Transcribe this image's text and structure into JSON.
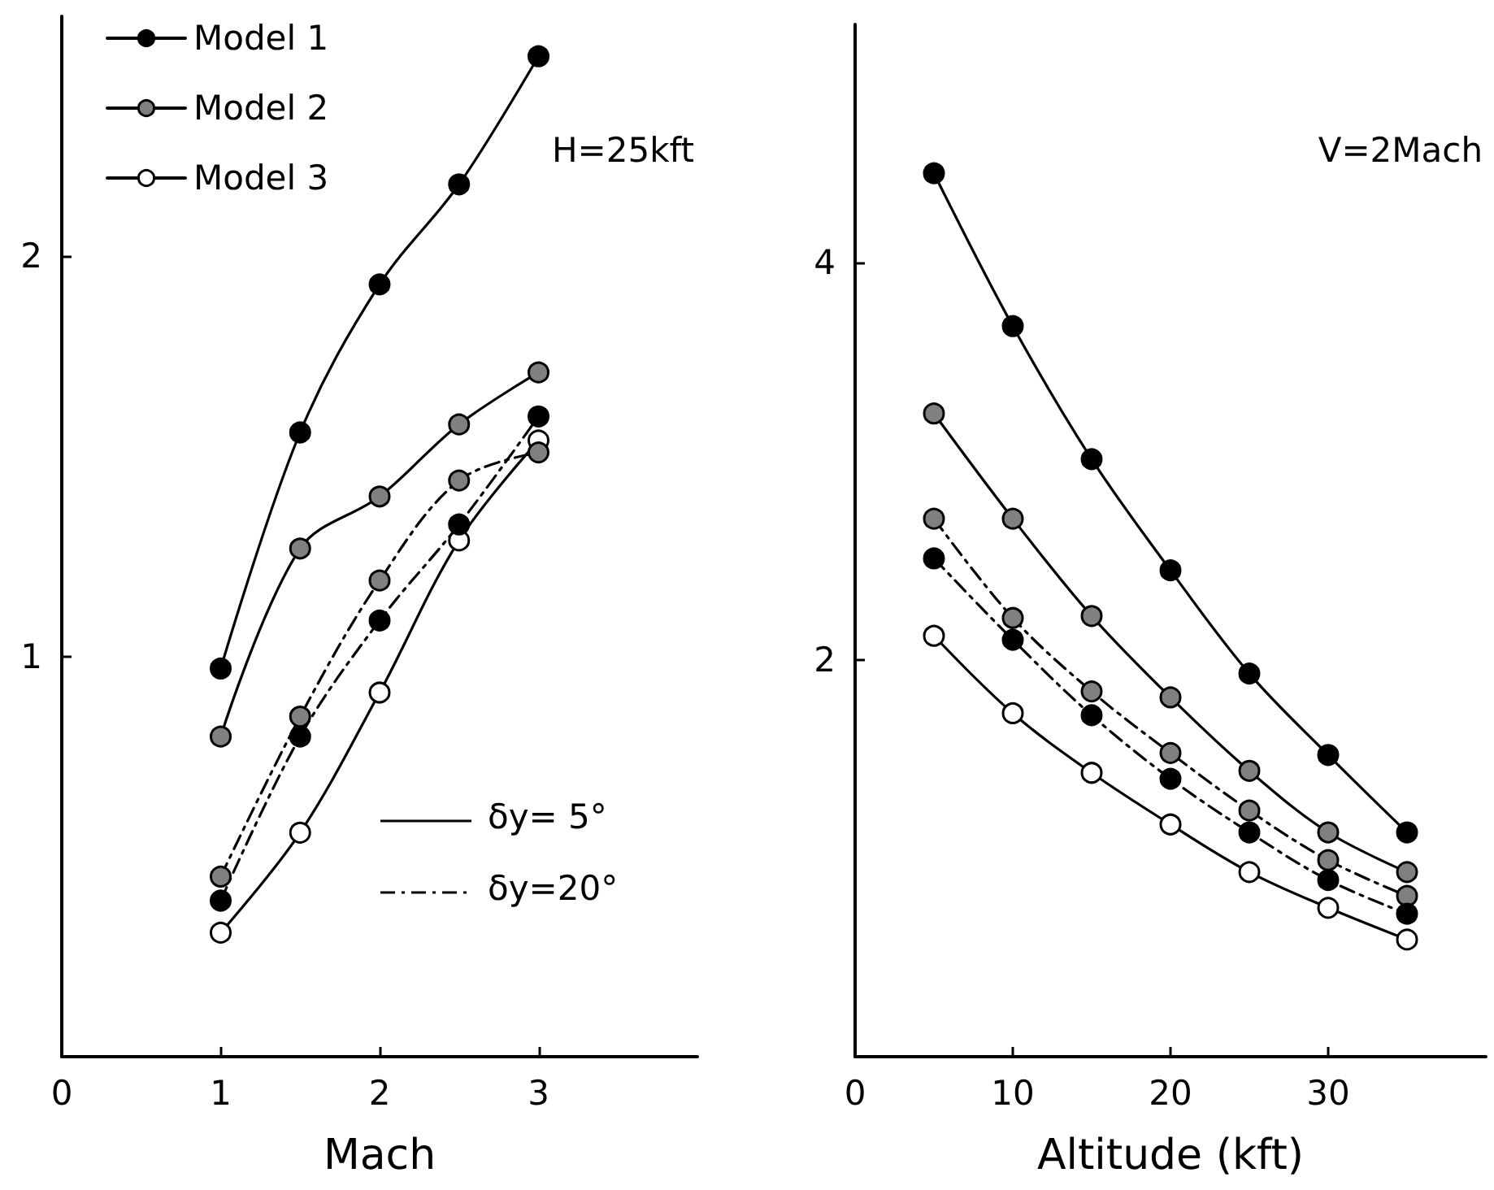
{
  "chart_data": [
    {
      "type": "line",
      "xlabel": "Mach",
      "x": [
        1,
        1.5,
        2,
        2.5,
        3
      ],
      "xlim": [
        0,
        4
      ],
      "xticks": [
        0,
        1,
        2,
        3
      ],
      "ylim": [
        0,
        2.6
      ],
      "yticks": [
        1,
        2
      ],
      "legend": "top left",
      "marker": "circle",
      "annotations": [
        "H=25kft",
        "δy= 5°",
        "δy=20°"
      ],
      "series": [
        {
          "name": "Model 1",
          "color": "#000000",
          "colors": [
            "#000000",
            "#000000",
            "#000000",
            "#000000",
            "#000000"
          ],
          "line_style": "solid",
          "values": [
            0.97,
            1.56,
            1.93,
            2.18,
            2.5
          ]
        },
        {
          "name": "Model 2",
          "color": "#000000",
          "colors": [
            "#808080",
            "#808080",
            "#808080",
            "#808080",
            "#808080"
          ],
          "line_style": "solid",
          "values": [
            0.8,
            1.27,
            1.4,
            1.58,
            1.71
          ]
        },
        {
          "name": "Model 3",
          "color": "#000000",
          "colors": [
            "#ffffff",
            "#ffffff",
            "#ffffff",
            "#ffffff",
            "#ffffff"
          ],
          "line_style": "solid",
          "values": [
            0.31,
            0.56,
            0.91,
            1.29,
            1.54
          ]
        },
        {
          "color": "#000000",
          "colors": [
            "#808080",
            "#808080",
            "#808080",
            "#808080",
            "#808080"
          ],
          "line_style": "dashed",
          "values": [
            0.45,
            0.85,
            1.19,
            1.44,
            1.51
          ]
        },
        {
          "color": "#000000",
          "colors": [
            "#000000",
            "#000000",
            "#000000",
            "#000000",
            "#000000"
          ],
          "line_style": "dashed",
          "values": [
            0.39,
            0.8,
            1.09,
            1.33,
            1.6
          ]
        }
      ]
    },
    {
      "type": "line",
      "xlabel": "Altitude (kft)",
      "x": [
        5,
        10,
        15,
        20,
        25,
        30,
        35
      ],
      "xlim": [
        0,
        40
      ],
      "xticks": [
        0,
        10,
        20,
        30
      ],
      "ylim": [
        0,
        5.2
      ],
      "yticks": [
        2,
        4
      ],
      "marker": "circle",
      "annotations": [
        "V=2Mach"
      ],
      "series": [
        {
          "color": "#000000",
          "colors": [
            "#000000",
            "#000000",
            "#000000",
            "#000000",
            "#000000",
            "#000000",
            "#000000"
          ],
          "line_style": "solid",
          "values": [
            4.45,
            3.68,
            3.01,
            2.45,
            1.93,
            1.52,
            1.13
          ]
        },
        {
          "color": "#000000",
          "colors": [
            "#808080",
            "#808080",
            "#808080",
            "#808080",
            "#808080",
            "#808080",
            "#808080"
          ],
          "line_style": "solid",
          "values": [
            3.24,
            2.71,
            2.22,
            1.81,
            1.44,
            1.13,
            0.93
          ]
        },
        {
          "color": "#000000",
          "colors": [
            "#808080",
            "#808080",
            "#808080",
            "#808080",
            "#808080",
            "#808080",
            "#808080"
          ],
          "line_style": "dashed",
          "values": [
            2.71,
            2.21,
            1.84,
            1.53,
            1.24,
            0.99,
            0.81
          ]
        },
        {
          "color": "#000000",
          "colors": [
            "#000000",
            "#000000",
            "#000000",
            "#000000",
            "#000000",
            "#000000",
            "#000000"
          ],
          "line_style": "dashed",
          "values": [
            2.51,
            2.1,
            1.72,
            1.4,
            1.13,
            0.89,
            0.72
          ]
        },
        {
          "color": "#000000",
          "colors": [
            "#ffffff",
            "#ffffff",
            "#ffffff",
            "#ffffff",
            "#ffffff",
            "#ffffff",
            "#ffffff"
          ],
          "line_style": "solid",
          "values": [
            2.12,
            1.73,
            1.43,
            1.17,
            0.93,
            0.75,
            0.59
          ]
        }
      ]
    }
  ]
}
